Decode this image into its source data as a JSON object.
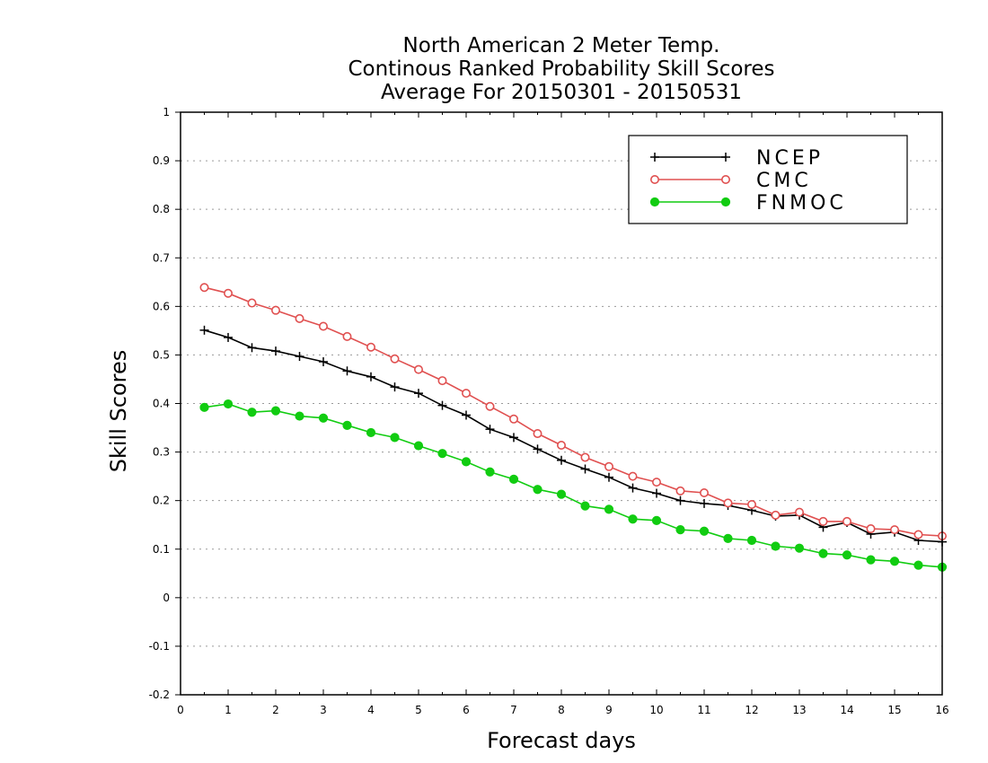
{
  "chart_data": {
    "type": "line",
    "title": [
      "North American 2 Meter Temp.",
      "Continous Ranked Probability Skill Scores",
      "Average For 20150301 - 20150531"
    ],
    "xlabel": "Forecast days",
    "ylabel": "Skill Scores",
    "xlim": [
      0,
      16
    ],
    "ylim": [
      -0.2,
      1
    ],
    "x_ticks": [
      "0",
      "1",
      "2",
      "3",
      "4",
      "5",
      "6",
      "7",
      "8",
      "9",
      "10",
      "11",
      "12",
      "13",
      "14",
      "15",
      "16"
    ],
    "y_ticks": [
      "1",
      "0.9",
      "0.8",
      "0.7",
      "0.6",
      "0.5",
      "0.4",
      "0.3",
      "0.2",
      "0.1",
      "0",
      "-0.1",
      "-0.2"
    ],
    "y_tick_values": [
      1,
      0.9,
      0.8,
      0.7,
      0.6,
      0.5,
      0.4,
      0.3,
      0.2,
      0.1,
      0,
      -0.1,
      -0.2
    ],
    "grid": "horizontal-dotted",
    "legend_position": "top-right",
    "x": [
      0.5,
      1,
      1.5,
      2,
      2.5,
      3,
      3.5,
      4,
      4.5,
      5,
      5.5,
      6,
      6.5,
      7,
      7.5,
      8,
      8.5,
      9,
      9.5,
      10,
      10.5,
      11,
      11.5,
      12,
      12.5,
      13,
      13.5,
      14,
      14.5,
      15,
      15.5,
      16
    ],
    "series": [
      {
        "name": "NCEP",
        "color": "#000000",
        "marker": "plus",
        "values": [
          0.551,
          0.536,
          0.515,
          0.508,
          0.497,
          0.486,
          0.467,
          0.455,
          0.434,
          0.421,
          0.396,
          0.376,
          0.347,
          0.33,
          0.306,
          0.283,
          0.265,
          0.248,
          0.226,
          0.215,
          0.2,
          0.194,
          0.19,
          0.18,
          0.168,
          0.17,
          0.145,
          0.155,
          0.131,
          0.135,
          0.118,
          0.115
        ]
      },
      {
        "name": "CMC",
        "color": "#e05050",
        "marker": "open-circle",
        "values": [
          0.639,
          0.627,
          0.607,
          0.592,
          0.575,
          0.559,
          0.538,
          0.516,
          0.492,
          0.47,
          0.447,
          0.421,
          0.394,
          0.368,
          0.338,
          0.314,
          0.289,
          0.27,
          0.25,
          0.238,
          0.22,
          0.216,
          0.195,
          0.192,
          0.17,
          0.176,
          0.157,
          0.157,
          0.142,
          0.14,
          0.13,
          0.127
        ]
      },
      {
        "name": "FNMOC",
        "color": "#11cc11",
        "marker": "filled-circle",
        "values": [
          0.392,
          0.399,
          0.382,
          0.385,
          0.374,
          0.37,
          0.355,
          0.34,
          0.33,
          0.313,
          0.297,
          0.28,
          0.259,
          0.244,
          0.223,
          0.213,
          0.189,
          0.182,
          0.162,
          0.159,
          0.14,
          0.137,
          0.122,
          0.118,
          0.106,
          0.102,
          0.091,
          0.088,
          0.078,
          0.075,
          0.067,
          0.063
        ]
      }
    ]
  }
}
